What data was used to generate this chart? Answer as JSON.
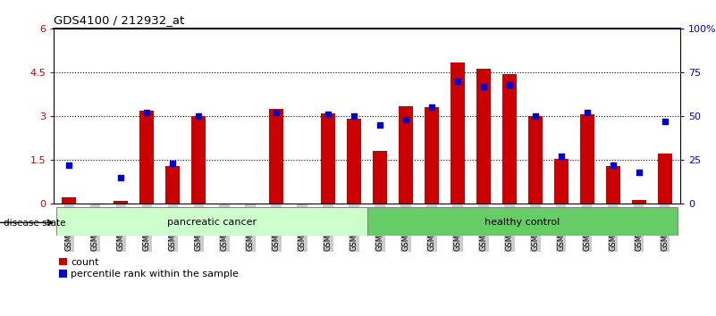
{
  "title": "GDS4100 / 212932_at",
  "samples": [
    "GSM356796",
    "GSM356797",
    "GSM356798",
    "GSM356799",
    "GSM356800",
    "GSM356801",
    "GSM356802",
    "GSM356803",
    "GSM356804",
    "GSM356805",
    "GSM356806",
    "GSM356807",
    "GSM356808",
    "GSM356809",
    "GSM356810",
    "GSM356811",
    "GSM356812",
    "GSM356813",
    "GSM356814",
    "GSM356815",
    "GSM356816",
    "GSM356817",
    "GSM356818",
    "GSM356819"
  ],
  "counts": [
    0.22,
    0.0,
    0.1,
    3.2,
    1.28,
    3.0,
    0.0,
    0.0,
    3.25,
    0.0,
    3.1,
    2.9,
    1.82,
    3.35,
    3.3,
    4.85,
    4.62,
    4.45,
    3.0,
    1.55,
    3.05,
    1.28,
    0.12,
    1.72
  ],
  "percentiles": [
    22,
    0,
    15,
    52,
    23,
    50,
    0,
    0,
    52,
    0,
    51,
    50,
    45,
    48,
    55,
    70,
    67,
    68,
    50,
    27,
    52,
    22,
    18,
    47
  ],
  "pancreatic_cancer_count": 12,
  "healthy_control_count": 12,
  "bar_color": "#cc0000",
  "dot_color": "#0000cc",
  "pancreatic_bg": "#ccffcc",
  "healthy_bg": "#66cc66",
  "label_bg": "#cccccc",
  "ylim_left": [
    0,
    6
  ],
  "ylim_right": [
    0,
    100
  ],
  "yticks_left": [
    0,
    1.5,
    3.0,
    4.5,
    6.0
  ],
  "ytick_labels_left": [
    "0",
    "1.5",
    "3",
    "4.5",
    "6"
  ],
  "yticks_right": [
    0,
    25,
    50,
    75,
    100
  ],
  "ytick_labels_right": [
    "0",
    "25",
    "50",
    "75",
    "100%"
  ]
}
